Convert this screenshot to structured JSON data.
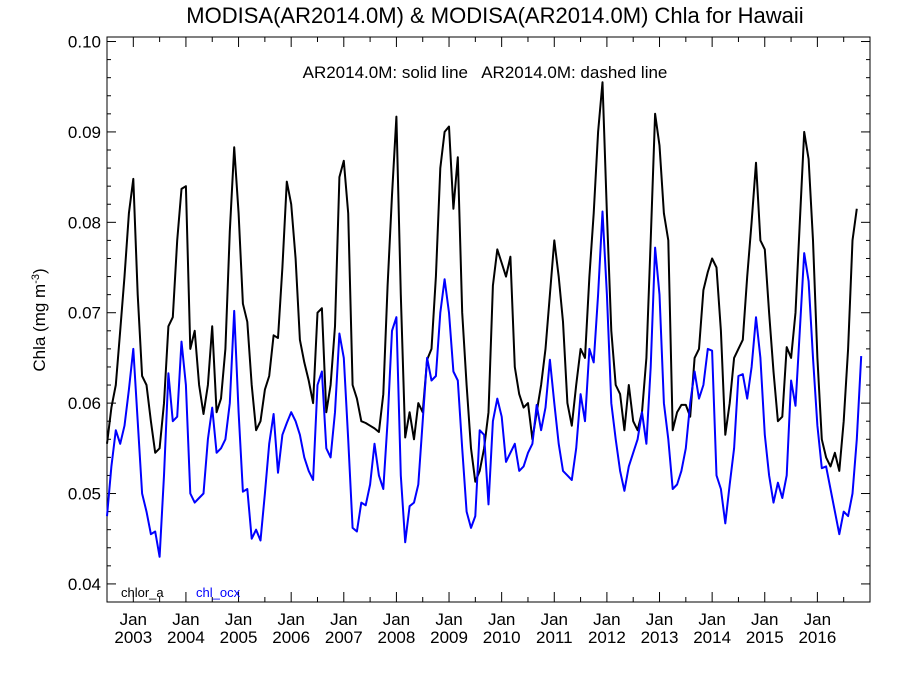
{
  "chart_data": {
    "type": "line",
    "title": "MODISA(AR2014.0M) & MODISA(AR2014.0M)  Chla for Hawaii",
    "annotation": "AR2014.0M: solid line   AR2014.0M: dashed line",
    "ylabel_main": "Chla (mg m",
    "ylabel_sup": "-3",
    "ylabel_end": ")",
    "xlim": [
      2002.5,
      2017.0
    ],
    "ylim": [
      0.038,
      0.1005
    ],
    "yticks": [
      0.04,
      0.05,
      0.06,
      0.07,
      0.08,
      0.09,
      0.1
    ],
    "ytick_labels": [
      "0.04",
      "0.05",
      "0.06",
      "0.07",
      "0.08",
      "0.09",
      "0.10"
    ],
    "xticks": [
      {
        "x": 2003,
        "month": "Jan",
        "year": "2003"
      },
      {
        "x": 2004,
        "month": "Jan",
        "year": "2004"
      },
      {
        "x": 2005,
        "month": "Jan",
        "year": "2005"
      },
      {
        "x": 2006,
        "month": "Jan",
        "year": "2006"
      },
      {
        "x": 2007,
        "month": "Jan",
        "year": "2007"
      },
      {
        "x": 2008,
        "month": "Jan",
        "year": "2008"
      },
      {
        "x": 2009,
        "month": "Jan",
        "year": "2009"
      },
      {
        "x": 2010,
        "month": "Jan",
        "year": "2010"
      },
      {
        "x": 2011,
        "month": "Jan",
        "year": "2011"
      },
      {
        "x": 2012,
        "month": "Jan",
        "year": "2012"
      },
      {
        "x": 2013,
        "month": "Jan",
        "year": "2013"
      },
      {
        "x": 2014,
        "month": "Jan",
        "year": "2014"
      },
      {
        "x": 2015,
        "month": "Jan",
        "year": "2015"
      },
      {
        "x": 2016,
        "month": "Jan",
        "year": "2016"
      }
    ],
    "grid": false,
    "legend_placement": "bottom-left",
    "x_start": 2002.5,
    "x_step_months": 1,
    "series": [
      {
        "name": "chlor_a",
        "color": "#000000",
        "values": [
          0.0555,
          0.0595,
          0.062,
          0.068,
          0.074,
          0.081,
          0.0848,
          0.072,
          0.063,
          0.062,
          0.058,
          0.0545,
          0.055,
          0.06,
          0.0685,
          0.0695,
          0.078,
          0.0837,
          0.084,
          0.066,
          0.068,
          0.062,
          0.0588,
          0.062,
          0.0685,
          0.059,
          0.0605,
          0.066,
          0.079,
          0.0883,
          0.081,
          0.071,
          0.069,
          0.062,
          0.057,
          0.058,
          0.0615,
          0.063,
          0.0675,
          0.0672,
          0.075,
          0.0845,
          0.082,
          0.076,
          0.067,
          0.0645,
          0.0625,
          0.06,
          0.07,
          0.0705,
          0.059,
          0.062,
          0.0685,
          0.085,
          0.0868,
          0.081,
          0.062,
          0.0605,
          0.058,
          0.0578,
          0.0575,
          0.0572,
          0.0568,
          0.061,
          0.073,
          0.083,
          0.0917,
          0.072,
          0.0562,
          0.059,
          0.056,
          0.06,
          0.059,
          0.0648,
          0.066,
          0.074,
          0.086,
          0.09,
          0.0906,
          0.0815,
          0.0872,
          0.07,
          0.062,
          0.055,
          0.0513,
          0.0525,
          0.055,
          0.059,
          0.073,
          0.077,
          0.0755,
          0.074,
          0.0762,
          0.064,
          0.061,
          0.0595,
          0.06,
          0.056,
          0.059,
          0.062,
          0.066,
          0.072,
          0.078,
          0.074,
          0.069,
          0.06,
          0.0575,
          0.062,
          0.066,
          0.065,
          0.074,
          0.081,
          0.09,
          0.0955,
          0.081,
          0.068,
          0.062,
          0.061,
          0.057,
          0.062,
          0.058,
          0.057,
          0.059,
          0.065,
          0.078,
          0.092,
          0.0885,
          0.081,
          0.078,
          0.057,
          0.059,
          0.0598,
          0.0598,
          0.0585,
          0.065,
          0.066,
          0.0725,
          0.0745,
          0.076,
          0.075,
          0.068,
          0.0565,
          0.06,
          0.065,
          0.066,
          0.067,
          0.074,
          0.08,
          0.0866,
          0.078,
          0.077,
          0.07,
          0.0635,
          0.058,
          0.0585,
          0.0662,
          0.065,
          0.07,
          0.08,
          0.09,
          0.087,
          0.078,
          0.065,
          0.056,
          0.054,
          0.053,
          0.0545,
          0.0525,
          0.058,
          0.066,
          0.078,
          0.0815
        ]
      },
      {
        "name": "chl_ocx",
        "color": "#0000ff",
        "values": [
          0.0475,
          0.053,
          0.057,
          0.0555,
          0.0575,
          0.0615,
          0.066,
          0.058,
          0.05,
          0.048,
          0.0455,
          0.0458,
          0.043,
          0.052,
          0.0633,
          0.058,
          0.0585,
          0.0668,
          0.062,
          0.05,
          0.049,
          0.0495,
          0.05,
          0.056,
          0.0595,
          0.0545,
          0.055,
          0.056,
          0.06,
          0.0702,
          0.059,
          0.0502,
          0.0505,
          0.045,
          0.046,
          0.0448,
          0.05,
          0.0555,
          0.0588,
          0.0523,
          0.0565,
          0.0578,
          0.059,
          0.058,
          0.0565,
          0.054,
          0.0525,
          0.0515,
          0.062,
          0.0635,
          0.055,
          0.054,
          0.059,
          0.0677,
          0.065,
          0.056,
          0.0462,
          0.0458,
          0.049,
          0.0487,
          0.051,
          0.0555,
          0.052,
          0.0505,
          0.058,
          0.068,
          0.0695,
          0.052,
          0.0446,
          0.0486,
          0.049,
          0.051,
          0.058,
          0.065,
          0.0625,
          0.063,
          0.07,
          0.0737,
          0.07,
          0.0635,
          0.0625,
          0.055,
          0.048,
          0.0462,
          0.0475,
          0.057,
          0.0565,
          0.0488,
          0.058,
          0.0605,
          0.0585,
          0.0535,
          0.0545,
          0.0555,
          0.0525,
          0.053,
          0.0545,
          0.0555,
          0.0598,
          0.057,
          0.0595,
          0.0648,
          0.06,
          0.0555,
          0.0525,
          0.052,
          0.0515,
          0.055,
          0.061,
          0.058,
          0.066,
          0.0645,
          0.072,
          0.0812,
          0.072,
          0.06,
          0.056,
          0.0525,
          0.0503,
          0.053,
          0.0545,
          0.056,
          0.059,
          0.0555,
          0.064,
          0.0772,
          0.072,
          0.06,
          0.056,
          0.0505,
          0.051,
          0.0525,
          0.055,
          0.06,
          0.0635,
          0.0605,
          0.062,
          0.066,
          0.0658,
          0.052,
          0.0505,
          0.0467,
          0.051,
          0.055,
          0.063,
          0.0632,
          0.0605,
          0.064,
          0.0695,
          0.065,
          0.0565,
          0.052,
          0.049,
          0.0512,
          0.0495,
          0.052,
          0.0625,
          0.0597,
          0.068,
          0.0766,
          0.0735,
          0.065,
          0.0575,
          0.0528,
          0.053,
          0.0505,
          0.048,
          0.0455,
          0.048,
          0.0475,
          0.05,
          0.056,
          0.0652
        ]
      }
    ]
  }
}
